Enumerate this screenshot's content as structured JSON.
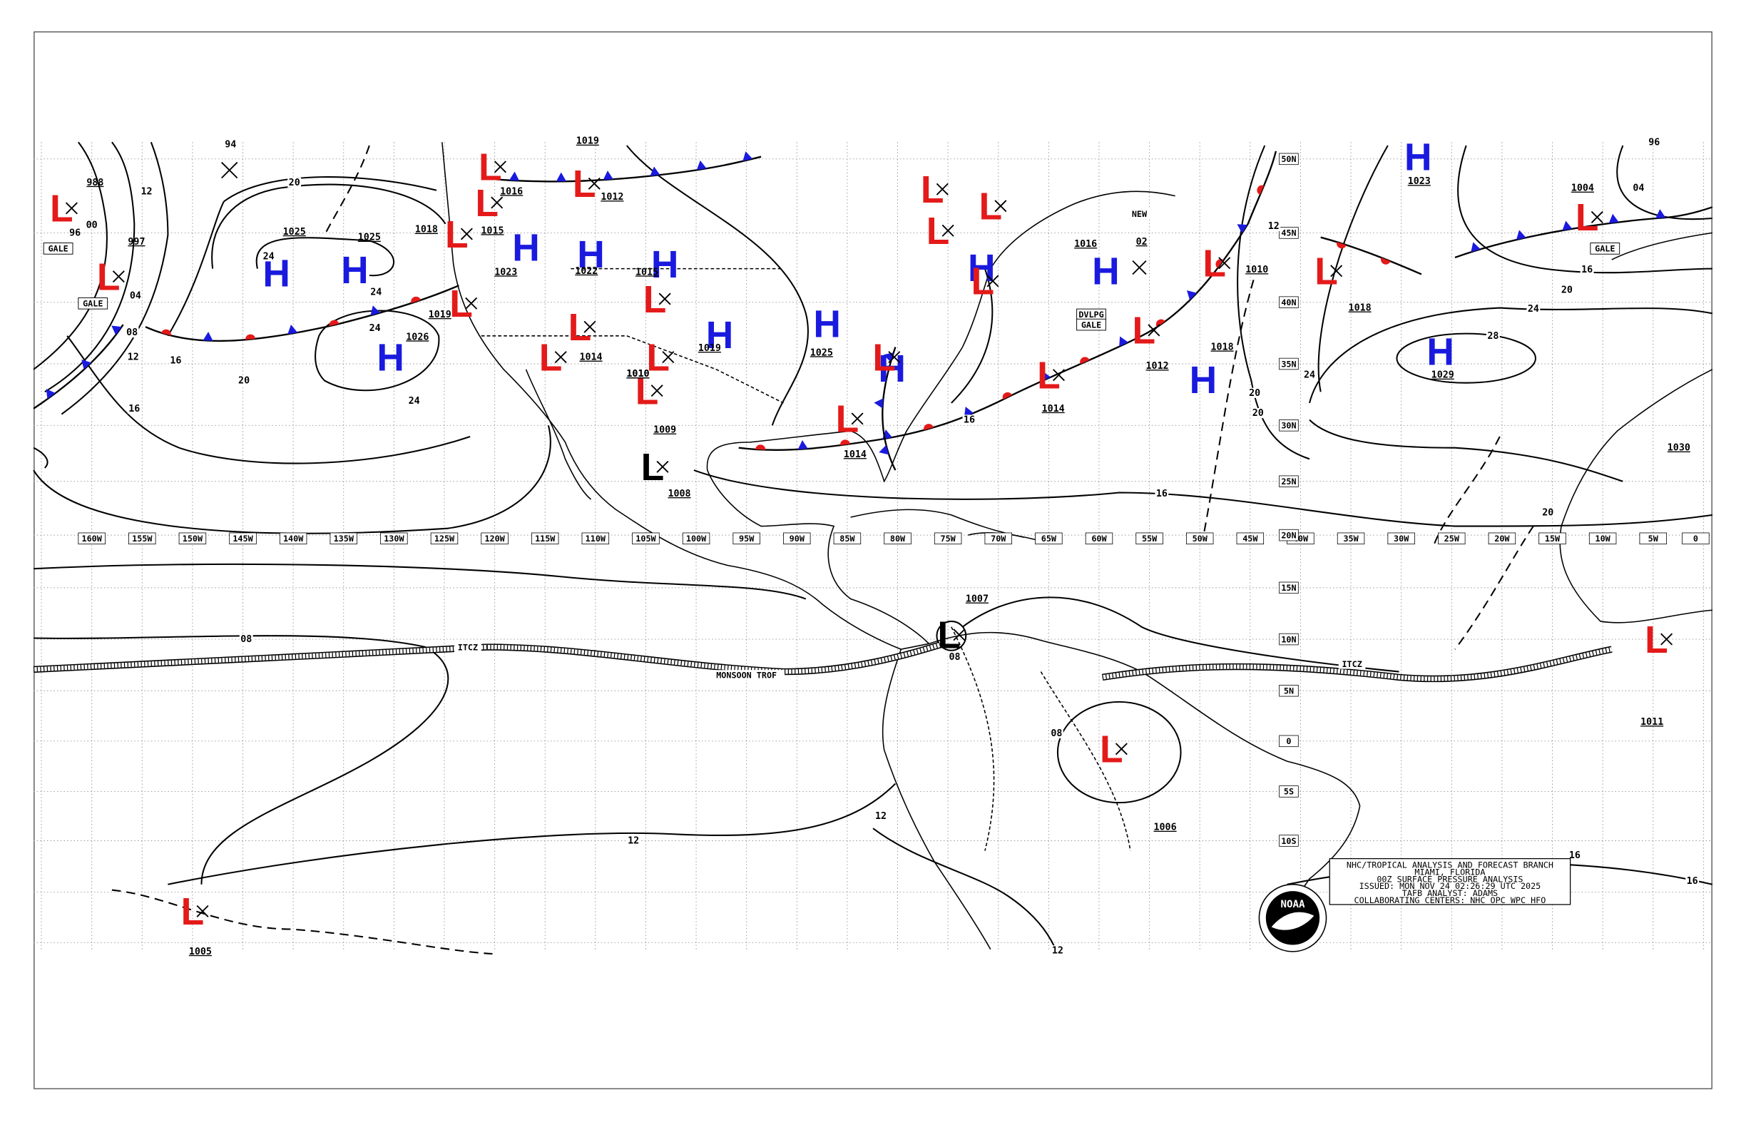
{
  "title_block": {
    "lines": [
      "NHC/TROPICAL ANALYSIS AND FORECAST BRANCH",
      "MIAMI, FLORIDA",
      "00Z SURFACE PRESSURE ANALYSIS",
      "ISSUED: MON NOV 24 02:26:29 UTC 2025",
      "TAFB ANALYST: ADAMS",
      "COLLABORATING CENTERS: NHC OPC WPC HFO"
    ]
  },
  "logo": "NOAA",
  "longitudes": [
    "160W",
    "155W",
    "150W",
    "145W",
    "140W",
    "135W",
    "130W",
    "125W",
    "120W",
    "115W",
    "110W",
    "105W",
    "100W",
    "95W",
    "90W",
    "85W",
    "80W",
    "75W",
    "70W",
    "65W",
    "60W",
    "55W",
    "50W",
    "45W",
    "40W",
    "35W",
    "30W",
    "25W",
    "20W",
    "15W",
    "10W",
    "5W",
    "0"
  ],
  "latitudes": [
    "50N",
    "45N",
    "40N",
    "35N",
    "30N",
    "25N",
    "20N",
    "15N",
    "10N",
    "5N",
    "0",
    "5S",
    "10S"
  ],
  "centers": [
    {
      "letter": "H",
      "pressure": "1025"
    },
    {
      "letter": "H",
      "pressure": "1025"
    },
    {
      "letter": "H",
      "pressure": "1026"
    },
    {
      "letter": "H",
      "pressure": "1023"
    },
    {
      "letter": "H",
      "pressure": "1022"
    },
    {
      "letter": "H",
      "pressure": "1015"
    },
    {
      "letter": "H",
      "pressure": "1019"
    },
    {
      "letter": "H",
      "pressure": "1023"
    },
    {
      "letter": "H",
      "pressure": "1029"
    },
    {
      "letter": "H",
      "pressure": "1018"
    },
    {
      "letter": "H",
      "pressure": "1016"
    },
    {
      "letter": "H",
      "pressure": "1025"
    },
    {
      "letter": "H"
    },
    {
      "letter": "H"
    },
    {
      "letter": "L",
      "pressure": "988"
    },
    {
      "letter": "L",
      "pressure": "997"
    },
    {
      "letter": "L"
    },
    {
      "letter": "L",
      "pressure": "1016"
    },
    {
      "letter": "L",
      "pressure": "1018"
    },
    {
      "letter": "L",
      "pressure": "1019"
    },
    {
      "letter": "L",
      "pressure": "1014"
    },
    {
      "letter": "L"
    },
    {
      "letter": "L",
      "pressure": "1012"
    },
    {
      "letter": "L"
    },
    {
      "letter": "L",
      "pressure": "1010"
    },
    {
      "letter": "L",
      "pressure": "1009"
    },
    {
      "letter": "L",
      "pressure": "1014"
    },
    {
      "letter": "L"
    },
    {
      "letter": "L"
    },
    {
      "letter": "L"
    },
    {
      "letter": "L"
    },
    {
      "letter": "L"
    },
    {
      "letter": "L",
      "pressure": "1014"
    },
    {
      "letter": "L",
      "pressure": "1012"
    },
    {
      "letter": "L",
      "pressure": "1010"
    },
    {
      "letter": "L",
      "pressure": "1018"
    },
    {
      "letter": "L",
      "pressure": "1004"
    },
    {
      "letter": "L",
      "pressure": "1011"
    },
    {
      "letter": "L",
      "pressure": "1006"
    },
    {
      "letter": "L",
      "pressure": "1005"
    },
    {
      "letter": "L",
      "pressure": "1008"
    },
    {
      "letter": "L",
      "pressure": "1007"
    }
  ],
  "pressure_labels": [
    "1030",
    "02",
    "1019",
    "1015",
    "1010",
    "94",
    "96",
    "00",
    "04",
    "08",
    "96",
    "04"
  ],
  "isobar_labels": [
    "20",
    "12",
    "24",
    "24",
    "24",
    "24",
    "20",
    "16",
    "16",
    "08",
    "12",
    "08",
    "12",
    "12",
    "08",
    "08",
    "16",
    "16",
    "20",
    "24",
    "28",
    "20",
    "16",
    "16",
    "12",
    "20",
    "20",
    "24",
    "12",
    "16"
  ],
  "features": [
    "GALE",
    "GALE",
    "GALE",
    "DVLPG",
    "GALE",
    "NEW",
    "ITCZ",
    "MONSOON TROF",
    "ITCZ"
  ]
}
